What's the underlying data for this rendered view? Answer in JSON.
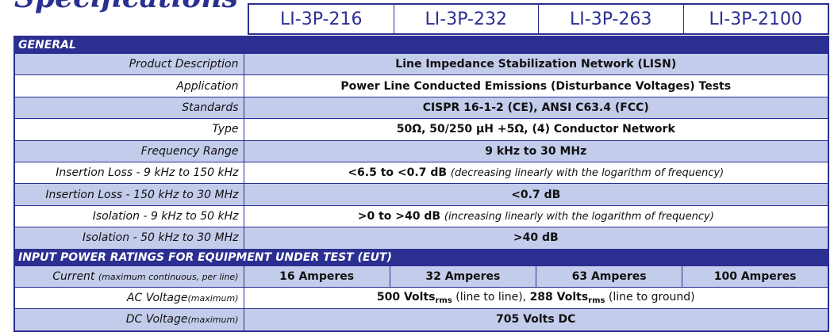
{
  "page_title": "Specifications",
  "models": [
    "LI-3P-216",
    "LI-3P-232",
    "LI-3P-263",
    "LI-3P-2100"
  ],
  "general": {
    "section_label": "GENERAL",
    "product_description": {
      "label": "Product Description",
      "value": "Line Impedance Stabilization Network (LISN)"
    },
    "application": {
      "label": "Application",
      "value": "Power Line Conducted Emissions (Disturbance Voltages) Tests"
    },
    "standards": {
      "label": "Standards",
      "value": "CISPR 16-1-2 (CE), ANSI C63.4 (FCC)"
    },
    "type": {
      "label": "Type",
      "value": "50Ω, 50/250 µH +5Ω, (4) Conductor Network"
    },
    "frequency_range": {
      "label": "Frequency Range",
      "value": "9 kHz to 30 MHz"
    },
    "insertion_loss_low": {
      "label": "Insertion Loss - 9 kHz to 150 kHz",
      "value": "<6.5 to <0.7 dB",
      "note": "(decreasing linearly with the logarithm of frequency)"
    },
    "insertion_loss_high": {
      "label": "Insertion Loss - 150 kHz to 30 MHz",
      "value": "<0.7 dB"
    },
    "isolation_low": {
      "label": "Isolation - 9 kHz to 50 kHz",
      "value": ">0 to >40 dB",
      "note": "(increasing linearly with the logarithm of frequency)"
    },
    "isolation_high": {
      "label": "Isolation - 50 kHz to 30 MHz",
      "value": ">40 dB"
    }
  },
  "input_power": {
    "section_label": "INPUT POWER RATINGS FOR EQUIPMENT UNDER TEST (EUT)",
    "current": {
      "label": "Current",
      "label_note": "(maximum continuous, per line)",
      "values": [
        "16 Amperes",
        "32 Amperes",
        "63 Amperes",
        "100 Amperes"
      ]
    },
    "ac_voltage": {
      "label": "AC Voltage",
      "label_note": "(maximum)",
      "part1": "500 Volts",
      "sub1": "rms",
      "part2": " (line to line), ",
      "part3": "288 Volts",
      "sub2": "rms",
      "part4": " (line to ground)"
    },
    "dc_voltage": {
      "label": "DC Voltage",
      "label_note": "(maximum)",
      "value": "705 Volts DC"
    }
  }
}
